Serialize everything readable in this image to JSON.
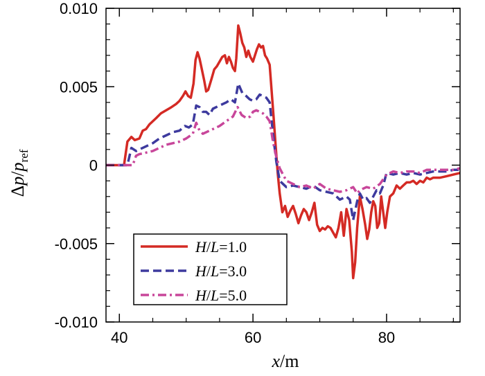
{
  "chart_data": {
    "type": "line",
    "title": "",
    "xlabel": {
      "var": "x",
      "unit": "/m"
    },
    "ylabel": {
      "delta": "Δ",
      "num": "p",
      "slash": "/",
      "den": "p",
      "sub": "ref"
    },
    "xlim": [
      38,
      91
    ],
    "ylim": [
      -0.01,
      0.01
    ],
    "x_ticks": [
      40,
      60,
      80
    ],
    "x_tick_labels": [
      "40",
      "60",
      "80"
    ],
    "y_ticks": [
      0.01,
      0.005,
      0,
      -0.005,
      -0.01
    ],
    "y_tick_labels": [
      "0.010",
      "0.005",
      "0",
      "-0.005",
      "-0.010"
    ],
    "legend_position": "bottom-left",
    "series": [
      {
        "name": "H/L=1.0",
        "label_var1": "H",
        "label_var2": "L",
        "label_value": "=1.0",
        "color": "#d42a24",
        "dash": "solid",
        "points": [
          [
            38,
            0
          ],
          [
            40.7,
            0
          ],
          [
            41.2,
            0.0015
          ],
          [
            41.8,
            0.0018
          ],
          [
            42.3,
            0.0016
          ],
          [
            43,
            0.0017
          ],
          [
            43.5,
            0.0022
          ],
          [
            44,
            0.0023
          ],
          [
            44.5,
            0.0026
          ],
          [
            45,
            0.0028
          ],
          [
            45.5,
            0.003
          ],
          [
            46.2,
            0.0033
          ],
          [
            47,
            0.0035
          ],
          [
            47.8,
            0.0037
          ],
          [
            48.5,
            0.0039
          ],
          [
            49,
            0.0041
          ],
          [
            49.5,
            0.0044
          ],
          [
            49.9,
            0.0047
          ],
          [
            50.3,
            0.0044
          ],
          [
            50.7,
            0.0043
          ],
          [
            51.1,
            0.0052
          ],
          [
            51.4,
            0.0067
          ],
          [
            51.7,
            0.0072
          ],
          [
            52,
            0.0068
          ],
          [
            52.3,
            0.0062
          ],
          [
            52.7,
            0.0054
          ],
          [
            53,
            0.0047
          ],
          [
            53.3,
            0.0048
          ],
          [
            53.8,
            0.0055
          ],
          [
            54.2,
            0.0061
          ],
          [
            54.6,
            0.0063
          ],
          [
            55,
            0.0066
          ],
          [
            55.4,
            0.0069
          ],
          [
            55.8,
            0.007
          ],
          [
            56.1,
            0.0065
          ],
          [
            56.4,
            0.0069
          ],
          [
            56.7,
            0.0066
          ],
          [
            57,
            0.0062
          ],
          [
            57.3,
            0.006
          ],
          [
            57.5,
            0.0068
          ],
          [
            57.8,
            0.0089
          ],
          [
            58.1,
            0.0084
          ],
          [
            58.4,
            0.0078
          ],
          [
            58.7,
            0.0075
          ],
          [
            59,
            0.0069
          ],
          [
            59.3,
            0.0073
          ],
          [
            59.6,
            0.0069
          ],
          [
            60,
            0.0066
          ],
          [
            60.3,
            0.007
          ],
          [
            60.6,
            0.0074
          ],
          [
            60.9,
            0.0077
          ],
          [
            61.2,
            0.0075
          ],
          [
            61.5,
            0.0076
          ],
          [
            61.8,
            0.007
          ],
          [
            62.1,
            0.0068
          ],
          [
            62.5,
            0.0064
          ],
          [
            62.8,
            0.0047
          ],
          [
            63.1,
            0.003
          ],
          [
            63.4,
            0.0012
          ],
          [
            63.7,
            -0.0005
          ],
          [
            64,
            -0.0018
          ],
          [
            64.4,
            -0.003
          ],
          [
            64.8,
            -0.0026
          ],
          [
            65.2,
            -0.0033
          ],
          [
            65.6,
            -0.0029
          ],
          [
            66,
            -0.0026
          ],
          [
            66.4,
            -0.0031
          ],
          [
            66.8,
            -0.0037
          ],
          [
            67.2,
            -0.0032
          ],
          [
            67.6,
            -0.0028
          ],
          [
            68,
            -0.003
          ],
          [
            68.4,
            -0.0035
          ],
          [
            68.8,
            -0.003
          ],
          [
            69.2,
            -0.0024
          ],
          [
            69.6,
            -0.0038
          ],
          [
            70,
            -0.0042
          ],
          [
            70.4,
            -0.004
          ],
          [
            70.8,
            -0.0041
          ],
          [
            71.2,
            -0.0039
          ],
          [
            71.6,
            -0.004
          ],
          [
            72,
            -0.0043
          ],
          [
            72.4,
            -0.0046
          ],
          [
            72.8,
            -0.004
          ],
          [
            73.2,
            -0.003
          ],
          [
            73.6,
            -0.0045
          ],
          [
            74,
            -0.0028
          ],
          [
            74.4,
            -0.0035
          ],
          [
            74.8,
            -0.0055
          ],
          [
            75,
            -0.0072
          ],
          [
            75.3,
            -0.0062
          ],
          [
            75.6,
            -0.004
          ],
          [
            76,
            -0.002
          ],
          [
            76.4,
            -0.0028
          ],
          [
            76.8,
            -0.0038
          ],
          [
            77.1,
            -0.0047
          ],
          [
            77.4,
            -0.0041
          ],
          [
            77.7,
            -0.003
          ],
          [
            78,
            -0.0023
          ],
          [
            78.3,
            -0.0026
          ],
          [
            78.6,
            -0.004
          ],
          [
            78.9,
            -0.0037
          ],
          [
            79.2,
            -0.002
          ],
          [
            79.5,
            -0.003
          ],
          [
            79.8,
            -0.004
          ],
          [
            80.1,
            -0.003
          ],
          [
            80.5,
            -0.002
          ],
          [
            81,
            -0.0018
          ],
          [
            81.5,
            -0.0013
          ],
          [
            82,
            -0.0015
          ],
          [
            82.5,
            -0.0013
          ],
          [
            83,
            -0.0011
          ],
          [
            83.5,
            -0.0011
          ],
          [
            84,
            -0.001
          ],
          [
            84.5,
            -0.0012
          ],
          [
            85,
            -0.001
          ],
          [
            85.5,
            -0.0011
          ],
          [
            86,
            -0.0008
          ],
          [
            86.5,
            -0.0009
          ],
          [
            87,
            -0.0008
          ],
          [
            88,
            -0.0008
          ],
          [
            89,
            -0.0007
          ],
          [
            90,
            -0.0006
          ],
          [
            91,
            -0.0005
          ]
        ]
      },
      {
        "name": "H/L=3.0",
        "label_var1": "H",
        "label_var2": "L",
        "label_value": "=3.0",
        "color": "#3d3a9e",
        "dash": "dash",
        "points": [
          [
            38,
            0
          ],
          [
            41.2,
            0
          ],
          [
            41.8,
            0.0011
          ],
          [
            42.5,
            0.0009
          ],
          [
            43,
            0.001
          ],
          [
            44,
            0.0012
          ],
          [
            45,
            0.0014
          ],
          [
            46,
            0.0017
          ],
          [
            47,
            0.0019
          ],
          [
            48,
            0.0021
          ],
          [
            49,
            0.0022
          ],
          [
            49.8,
            0.0025
          ],
          [
            50.4,
            0.0024
          ],
          [
            51,
            0.0026
          ],
          [
            51.5,
            0.0038
          ],
          [
            52,
            0.0037
          ],
          [
            52.5,
            0.0034
          ],
          [
            53,
            0.0034
          ],
          [
            53.5,
            0.0032
          ],
          [
            54,
            0.0036
          ],
          [
            55,
            0.0038
          ],
          [
            56,
            0.004
          ],
          [
            56.7,
            0.0042
          ],
          [
            57.3,
            0.004
          ],
          [
            57.8,
            0.0052
          ],
          [
            58.4,
            0.0046
          ],
          [
            59,
            0.0044
          ],
          [
            59.5,
            0.0042
          ],
          [
            60,
            0.0041
          ],
          [
            60.5,
            0.0042
          ],
          [
            61,
            0.0045
          ],
          [
            61.5,
            0.0044
          ],
          [
            62,
            0.0043
          ],
          [
            62.5,
            0.004
          ],
          [
            63,
            0.002
          ],
          [
            63.5,
            0.0002
          ],
          [
            64,
            -0.001
          ],
          [
            64.5,
            -0.0012
          ],
          [
            65,
            -0.0014
          ],
          [
            66,
            -0.0013
          ],
          [
            67,
            -0.0014
          ],
          [
            68,
            -0.0015
          ],
          [
            69,
            -0.0013
          ],
          [
            70,
            -0.0016
          ],
          [
            71,
            -0.0017
          ],
          [
            72,
            -0.0018
          ],
          [
            73,
            -0.0022
          ],
          [
            74,
            -0.002
          ],
          [
            74.5,
            -0.0022
          ],
          [
            75,
            -0.0035
          ],
          [
            75.6,
            -0.0023
          ],
          [
            76,
            -0.0018
          ],
          [
            76.5,
            -0.0022
          ],
          [
            77,
            -0.0021
          ],
          [
            77.5,
            -0.0024
          ],
          [
            78,
            -0.002
          ],
          [
            78.5,
            -0.0016
          ],
          [
            79,
            -0.0018
          ],
          [
            79.5,
            -0.0013
          ],
          [
            80,
            -0.0005
          ],
          [
            81,
            -0.0006
          ],
          [
            82,
            -0.0005
          ],
          [
            83,
            -0.0006
          ],
          [
            84,
            -0.0005
          ],
          [
            85,
            -0.0006
          ],
          [
            86,
            -0.0005
          ],
          [
            87,
            -0.0004
          ],
          [
            88,
            -0.0004
          ],
          [
            89,
            -0.0004
          ],
          [
            90,
            -0.0003
          ],
          [
            91,
            -0.0003
          ]
        ]
      },
      {
        "name": "H/L=5.0",
        "label_var1": "H",
        "label_var2": "L",
        "label_value": "=5.0",
        "color": "#c8469a",
        "dash": "dashdot",
        "points": [
          [
            38,
            0
          ],
          [
            42,
            0
          ],
          [
            42.5,
            0.0006
          ],
          [
            43,
            0.0007
          ],
          [
            44,
            0.0008
          ],
          [
            45,
            0.0009
          ],
          [
            46,
            0.0011
          ],
          [
            47,
            0.0013
          ],
          [
            48,
            0.0014
          ],
          [
            49,
            0.0015
          ],
          [
            50,
            0.0017
          ],
          [
            51,
            0.002
          ],
          [
            51.5,
            0.0027
          ],
          [
            52,
            0.0022
          ],
          [
            52.5,
            0.002
          ],
          [
            53,
            0.0021
          ],
          [
            54,
            0.0023
          ],
          [
            55,
            0.0025
          ],
          [
            56,
            0.0028
          ],
          [
            57,
            0.0031
          ],
          [
            57.7,
            0.0037
          ],
          [
            58.3,
            0.0032
          ],
          [
            59,
            0.003
          ],
          [
            59.6,
            0.0031
          ],
          [
            60,
            0.0034
          ],
          [
            60.5,
            0.0035
          ],
          [
            61,
            0.0034
          ],
          [
            61.5,
            0.0033
          ],
          [
            62,
            0.0031
          ],
          [
            62.5,
            0.0028
          ],
          [
            63,
            0.0015
          ],
          [
            63.5,
            0.0005
          ],
          [
            64,
            -0.0002
          ],
          [
            65,
            -0.001
          ],
          [
            66,
            -0.0012
          ],
          [
            67,
            -0.0014
          ],
          [
            68,
            -0.0013
          ],
          [
            69,
            -0.0015
          ],
          [
            70,
            -0.0012
          ],
          [
            71,
            -0.0015
          ],
          [
            72,
            -0.0016
          ],
          [
            73,
            -0.0017
          ],
          [
            74,
            -0.0016
          ],
          [
            75,
            -0.0014
          ],
          [
            75.6,
            -0.0018
          ],
          [
            76,
            -0.0016
          ],
          [
            77,
            -0.0014
          ],
          [
            78,
            -0.0015
          ],
          [
            79,
            -0.0012
          ],
          [
            80,
            -0.0006
          ],
          [
            81,
            -0.0004
          ],
          [
            82,
            -0.0005
          ],
          [
            83,
            -0.0004
          ],
          [
            84,
            -0.0004
          ],
          [
            85,
            -0.0005
          ],
          [
            86,
            -0.0003
          ],
          [
            87,
            -0.0003
          ],
          [
            88,
            -0.0003
          ],
          [
            89,
            -0.0003
          ],
          [
            90,
            -0.0003
          ],
          [
            91,
            -0.0002
          ]
        ]
      }
    ]
  }
}
